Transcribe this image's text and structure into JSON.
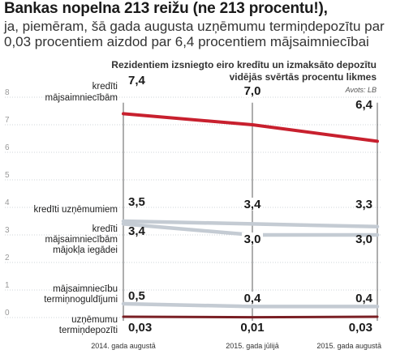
{
  "headline": "Bankas nopelna 213 reižu (ne 213 procentu!),",
  "subheadline": "ja, piemēram, šā gada augusta uzņēmumu termiņdepozītu par 0,03 procentiem aizdod par 6,4 procentiem mājsaimniecībai",
  "chart_data": {
    "type": "line",
    "title": "Rezidentiem izsniegto eiro kredītu un izmaksāto depozītu vidējās svērtās procentu likmes",
    "source": "Avots: LB",
    "x": [
      "2014. gada augustā",
      "2015. gada jūlijā",
      "2015. gada augustā"
    ],
    "ylim": [
      0,
      8
    ],
    "yticks": [
      0,
      1,
      2,
      3,
      4,
      5,
      6,
      7,
      8
    ],
    "grid": true,
    "series": [
      {
        "name": "kredīti mājsaimniecībām",
        "values": [
          7.4,
          7.0,
          6.4
        ],
        "labels": [
          "7,4",
          "7,0",
          "6,4"
        ],
        "color": "#c8202e"
      },
      {
        "name": "kredīti uzņēmumiem",
        "values": [
          3.5,
          3.4,
          3.3
        ],
        "labels": [
          "3,5",
          "3,4",
          "3,3"
        ],
        "color": "#c4cbd3"
      },
      {
        "name": "kredīti mājsaimniecībām mājokļa iegādei",
        "values": [
          3.4,
          3.0,
          3.0
        ],
        "labels": [
          "3,4",
          "3,0",
          "3,0"
        ],
        "color": "#c4cbd3"
      },
      {
        "name": "mājsaimniecību termiņnoguldījumi",
        "values": [
          0.5,
          0.4,
          0.4
        ],
        "labels": [
          "0,5",
          "0,4",
          "0,4"
        ],
        "color": "#c4cbd3"
      },
      {
        "name": "uzņēmumu termiņdepozīti",
        "values": [
          0.03,
          0.01,
          0.03
        ],
        "labels": [
          "0,03",
          "0,01",
          "0,03"
        ],
        "color": "#7a1f24"
      }
    ]
  }
}
